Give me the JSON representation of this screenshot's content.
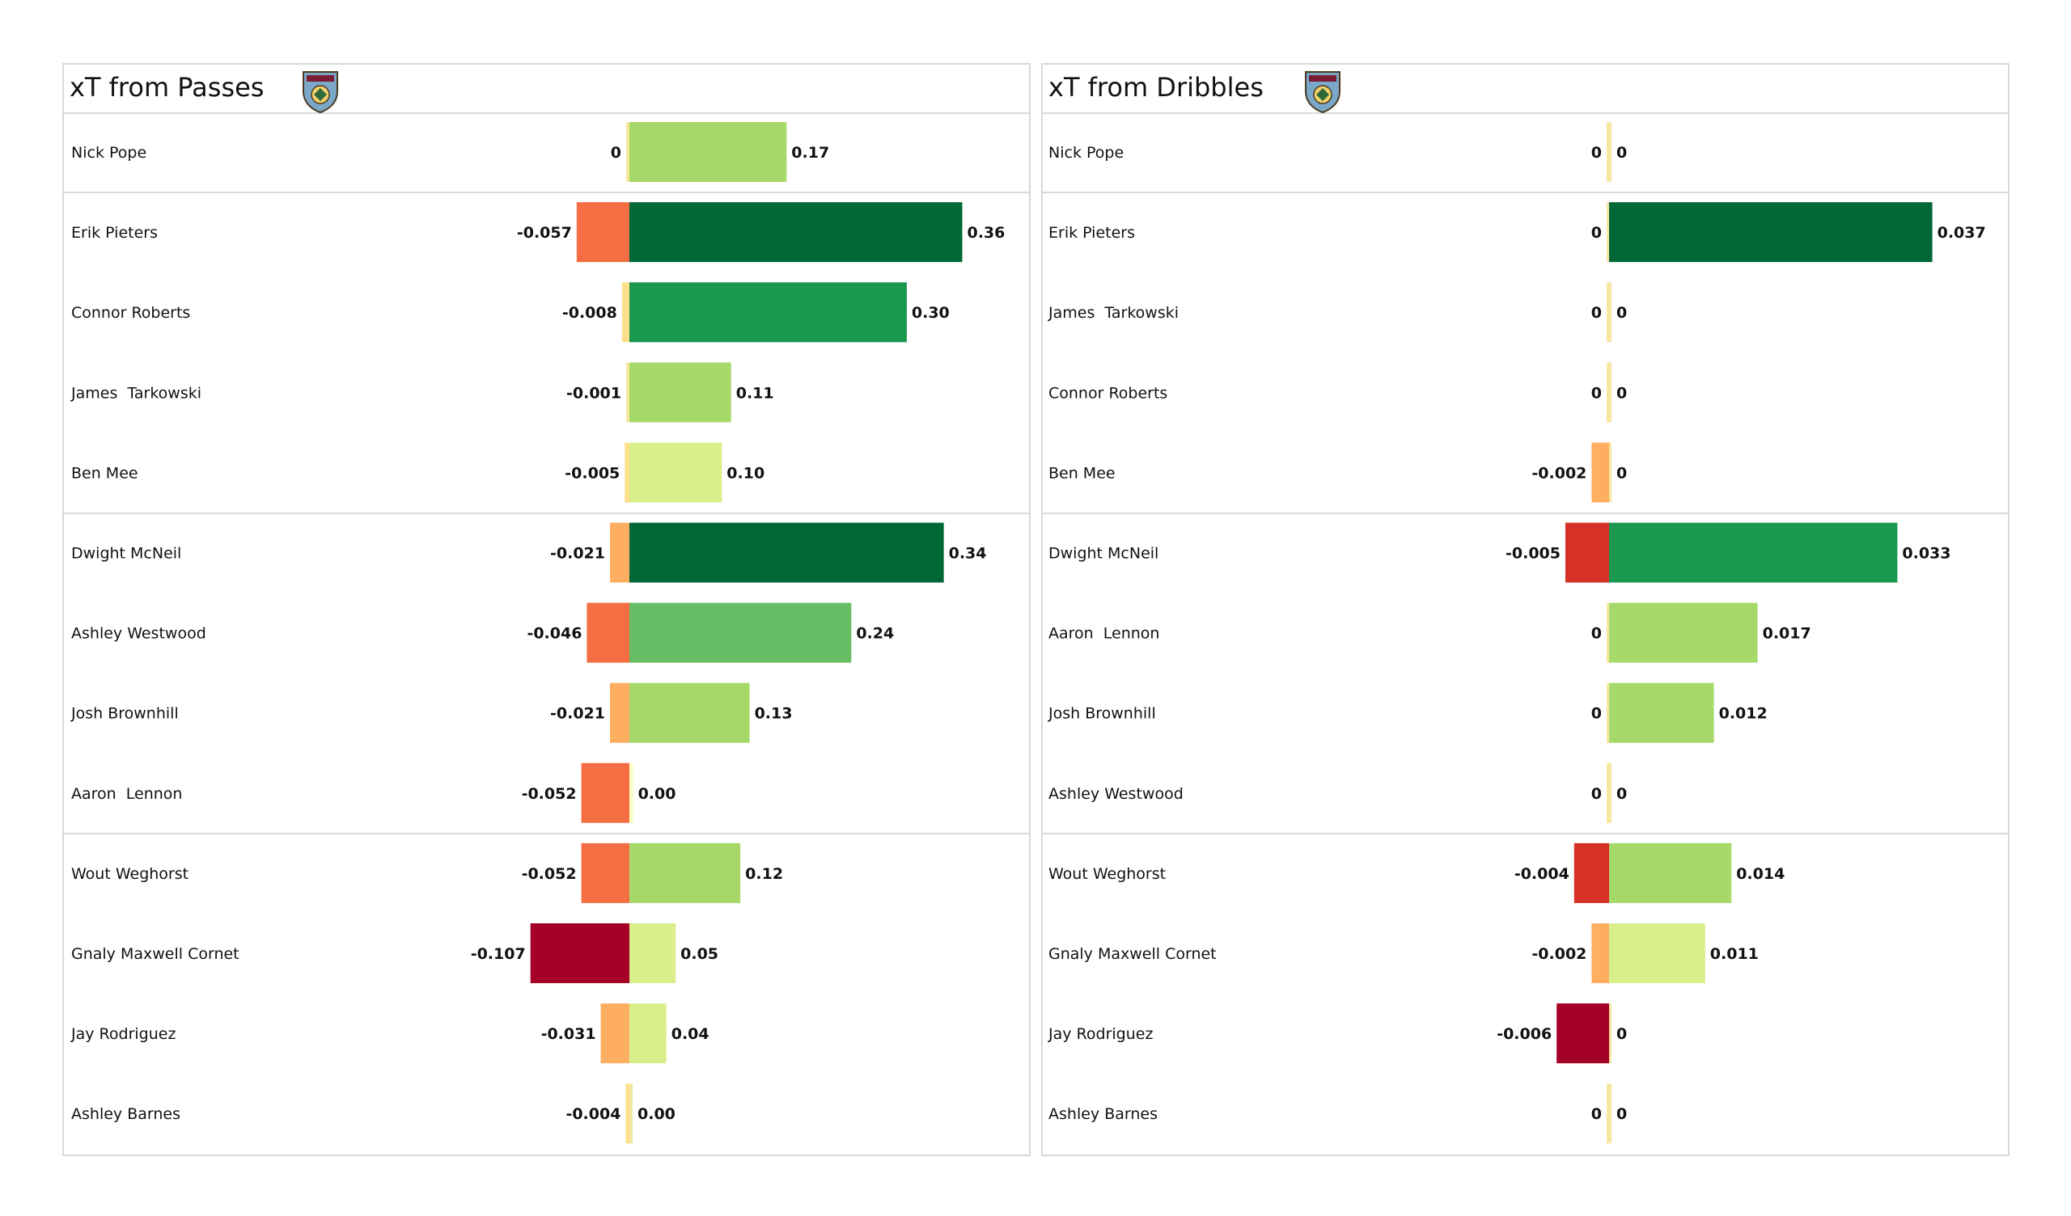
{
  "chart_data": [
    {
      "type": "bar",
      "title": "xT from Passes",
      "groups": [
        [
          "Nick Pope"
        ],
        [
          "Erik Pieters",
          "Connor Roberts",
          "James  Tarkowski",
          "Ben Mee"
        ],
        [
          "Dwight McNeil",
          "Ashley Westwood",
          "Josh Brownhill",
          "Aaron  Lennon"
        ],
        [
          "Wout Weghorst",
          "Gnaly Maxwell Cornet",
          "Jay Rodriguez",
          "Ashley Barnes"
        ]
      ],
      "rows": [
        {
          "player": "Nick Pope",
          "negative": 0,
          "positive": 0.17,
          "neg_label": "0",
          "pos_label": "0.17"
        },
        {
          "player": "Erik Pieters",
          "negative": -0.057,
          "positive": 0.36,
          "neg_label": "-0.057",
          "pos_label": "0.36"
        },
        {
          "player": "Connor Roberts",
          "negative": -0.008,
          "positive": 0.3,
          "neg_label": "-0.008",
          "pos_label": "0.30"
        },
        {
          "player": "James  Tarkowski",
          "negative": -0.001,
          "positive": 0.11,
          "neg_label": "-0.001",
          "pos_label": "0.11"
        },
        {
          "player": "Ben Mee",
          "negative": -0.005,
          "positive": 0.1,
          "neg_label": "-0.005",
          "pos_label": "0.10"
        },
        {
          "player": "Dwight McNeil",
          "negative": -0.021,
          "positive": 0.34,
          "neg_label": "-0.021",
          "pos_label": "0.34"
        },
        {
          "player": "Ashley Westwood",
          "negative": -0.046,
          "positive": 0.24,
          "neg_label": "-0.046",
          "pos_label": "0.24"
        },
        {
          "player": "Josh Brownhill",
          "negative": -0.021,
          "positive": 0.13,
          "neg_label": "-0.021",
          "pos_label": "0.13"
        },
        {
          "player": "Aaron  Lennon",
          "negative": -0.052,
          "positive": 0.004,
          "neg_label": "-0.052",
          "pos_label": "0.00"
        },
        {
          "player": "Wout Weghorst",
          "negative": -0.052,
          "positive": 0.12,
          "neg_label": "-0.052",
          "pos_label": "0.12"
        },
        {
          "player": "Gnaly Maxwell Cornet",
          "negative": -0.107,
          "positive": 0.05,
          "neg_label": "-0.107",
          "pos_label": "0.05"
        },
        {
          "player": "Jay Rodriguez",
          "negative": -0.031,
          "positive": 0.04,
          "neg_label": "-0.031",
          "pos_label": "0.04"
        },
        {
          "player": "Ashley Barnes",
          "negative": -0.004,
          "positive": 0.003,
          "neg_label": "-0.004",
          "pos_label": "0.00"
        }
      ]
    },
    {
      "type": "bar",
      "title": "xT from Dribbles",
      "groups": [
        [
          "Nick Pope"
        ],
        [
          "Erik Pieters",
          "James  Tarkowski",
          "Connor Roberts",
          "Ben Mee"
        ],
        [
          "Dwight McNeil",
          "Aaron  Lennon",
          "Josh Brownhill",
          "Ashley Westwood"
        ],
        [
          "Wout Weghorst",
          "Gnaly Maxwell Cornet",
          "Jay Rodriguez",
          "Ashley Barnes"
        ]
      ],
      "rows": [
        {
          "player": "Nick Pope",
          "negative": 0,
          "positive": 0,
          "neg_label": "0",
          "pos_label": "0"
        },
        {
          "player": "Erik Pieters",
          "negative": 0,
          "positive": 0.037,
          "neg_label": "0",
          "pos_label": "0.037"
        },
        {
          "player": "James  Tarkowski",
          "negative": 0,
          "positive": 0,
          "neg_label": "0",
          "pos_label": "0"
        },
        {
          "player": "Connor Roberts",
          "negative": 0,
          "positive": 0,
          "neg_label": "0",
          "pos_label": "0"
        },
        {
          "player": "Ben Mee",
          "negative": -0.002,
          "positive": 0,
          "neg_label": "-0.002",
          "pos_label": "0"
        },
        {
          "player": "Dwight McNeil",
          "negative": -0.005,
          "positive": 0.033,
          "neg_label": "-0.005",
          "pos_label": "0.033"
        },
        {
          "player": "Aaron  Lennon",
          "negative": 0,
          "positive": 0.017,
          "neg_label": "0",
          "pos_label": "0.017"
        },
        {
          "player": "Josh Brownhill",
          "negative": 0,
          "positive": 0.012,
          "neg_label": "0",
          "pos_label": "0.012"
        },
        {
          "player": "Ashley Westwood",
          "negative": 0,
          "positive": 0,
          "neg_label": "0",
          "pos_label": "0"
        },
        {
          "player": "Wout Weghorst",
          "negative": -0.004,
          "positive": 0.014,
          "neg_label": "-0.004",
          "pos_label": "0.014"
        },
        {
          "player": "Gnaly Maxwell Cornet",
          "negative": -0.002,
          "positive": 0.011,
          "neg_label": "-0.002",
          "pos_label": "0.011"
        },
        {
          "player": "Jay Rodriguez",
          "negative": -0.006,
          "positive": 0,
          "neg_label": "-0.006",
          "pos_label": "0"
        },
        {
          "player": "Ashley Barnes",
          "negative": 0,
          "positive": 0,
          "neg_label": "0",
          "pos_label": "0"
        }
      ]
    }
  ],
  "colors": {
    "panel_border": "#d9d9d9",
    "positive_scale": [
      "#ffffbf",
      "#d9ef8b",
      "#a6d96a",
      "#66bd63",
      "#1a9850",
      "#006837"
    ],
    "negative_scale": [
      "#fee08b",
      "#fdae61",
      "#f46d43",
      "#d73027",
      "#a50026"
    ],
    "zero_line": "#f6e7a0"
  },
  "icons": [
    "burnley-crest-icon",
    "burnley-crest-icon"
  ]
}
